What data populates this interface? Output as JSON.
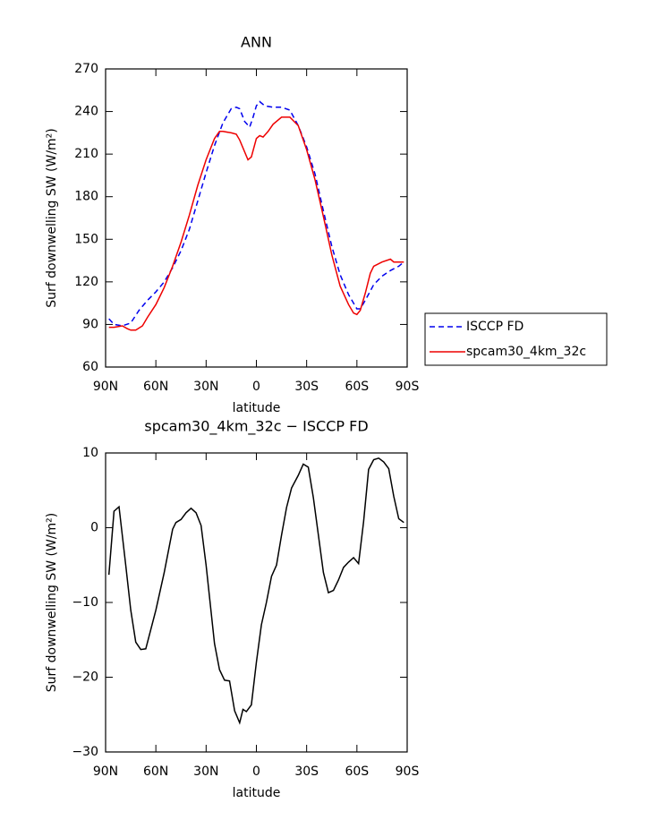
{
  "chart_data": [
    {
      "type": "line",
      "title": "ANN",
      "xlabel": "latitude",
      "ylabel": "Surf downwelling SW (W/m²)",
      "legend": "right",
      "xlim": [
        90,
        -90
      ],
      "xticks": [
        {
          "value": 90,
          "label": "90N"
        },
        {
          "value": 60,
          "label": "60N"
        },
        {
          "value": 30,
          "label": "30N"
        },
        0,
        {
          "value": -30,
          "label": "30S"
        },
        {
          "value": -60,
          "label": "60S"
        },
        {
          "value": -90,
          "label": "90S"
        }
      ],
      "ylim": [
        60,
        270
      ],
      "yticks": [
        60,
        90,
        120,
        150,
        180,
        210,
        240,
        270
      ],
      "series": [
        {
          "name": "ISCCP FD",
          "color": "#0000ee",
          "dash": true,
          "x": [
            88,
            85,
            80,
            75,
            70,
            65,
            60,
            55,
            50,
            45,
            40,
            35,
            30,
            25,
            20,
            15,
            12,
            10,
            7,
            4,
            2,
            0,
            -2,
            -5,
            -10,
            -15,
            -20,
            -25,
            -30,
            -35,
            -40,
            -45,
            -50,
            -55,
            -60,
            -62,
            -65,
            -70,
            -75,
            -80,
            -85,
            -88
          ],
          "values": [
            94,
            90,
            89,
            91,
            100,
            107,
            113,
            120,
            130,
            142,
            157,
            177,
            197,
            216,
            232,
            242,
            243,
            242,
            233,
            229,
            236,
            244,
            247,
            244,
            243,
            243,
            241,
            230,
            215,
            196,
            170,
            145,
            125,
            111,
            101,
            101,
            107,
            118,
            124,
            128,
            131,
            134
          ]
        },
        {
          "name": "spcam30_4km_32c",
          "color": "#ee0000",
          "dash": false,
          "x": [
            88,
            85,
            80,
            77,
            75,
            72,
            68,
            65,
            60,
            55,
            50,
            45,
            40,
            35,
            30,
            25,
            22,
            20,
            15,
            12,
            10,
            5,
            3,
            0,
            -2,
            -4,
            -7,
            -10,
            -15,
            -20,
            -25,
            -30,
            -35,
            -40,
            -45,
            -50,
            -55,
            -58,
            -60,
            -62,
            -65,
            -68,
            -70,
            -75,
            -80,
            -82,
            -85,
            -88
          ],
          "values": [
            88,
            88,
            89,
            87,
            86,
            86,
            89,
            95,
            104,
            116,
            131,
            148,
            167,
            188,
            206,
            221,
            226,
            226,
            225,
            224,
            220,
            206,
            208,
            221,
            223,
            222,
            226,
            231,
            236,
            236,
            230,
            213,
            192,
            166,
            139,
            117,
            104,
            98,
            97,
            100,
            112,
            126,
            131,
            134,
            136,
            134,
            134,
            134
          ]
        }
      ]
    },
    {
      "type": "line",
      "title": "spcam30_4km_32c − ISCCP FD",
      "xlabel": "latitude",
      "ylabel": "Surf downwelling SW (W/m²)",
      "xlim": [
        90,
        -90
      ],
      "xticks": [
        {
          "value": 90,
          "label": "90N"
        },
        {
          "value": 60,
          "label": "60N"
        },
        {
          "value": 30,
          "label": "30N"
        },
        0,
        {
          "value": -30,
          "label": "30S"
        },
        {
          "value": -60,
          "label": "60S"
        },
        {
          "value": -90,
          "label": "90S"
        }
      ],
      "ylim": [
        -30,
        10
      ],
      "yticks": [
        {
          "value": -30,
          "label": "−30"
        },
        {
          "value": -20,
          "label": "−20"
        },
        {
          "value": -10,
          "label": "−10"
        },
        0,
        10
      ],
      "series": [
        {
          "color": "#000000",
          "dash": false,
          "x": [
            88,
            85,
            82,
            78,
            75,
            72,
            69,
            66,
            60,
            55,
            50,
            48,
            45,
            42,
            39,
            36,
            33,
            30,
            25,
            22,
            19,
            16,
            13,
            10,
            8,
            6,
            3,
            0,
            -3,
            -6,
            -9,
            -12,
            -15,
            -18,
            -21,
            -25,
            -28,
            -31,
            -34,
            -37,
            -40,
            -43,
            -46,
            -49,
            -52,
            -55,
            -58,
            -61,
            -64,
            -67,
            -70,
            -73,
            -76,
            -79,
            -82,
            -85,
            -88
          ],
          "values": [
            -6.3,
            2.2,
            2.8,
            -5,
            -11,
            -15.3,
            -16.3,
            -16.2,
            -11,
            -6,
            -0.2,
            0.7,
            1.1,
            2,
            2.6,
            2,
            0.3,
            -5,
            -15.5,
            -19,
            -20.4,
            -20.5,
            -24.5,
            -26.1,
            -24.3,
            -24.6,
            -23.7,
            -18,
            -13,
            -10,
            -6.5,
            -5,
            -1,
            2.7,
            5.3,
            7,
            8.5,
            8.1,
            4,
            -1,
            -6,
            -8.7,
            -8.4,
            -7,
            -5.3,
            -4.6,
            -4,
            -4.8,
            0.8,
            7.8,
            9.1,
            9.3,
            8.8,
            7.9,
            4.2,
            1.2,
            0.7
          ]
        }
      ]
    }
  ]
}
